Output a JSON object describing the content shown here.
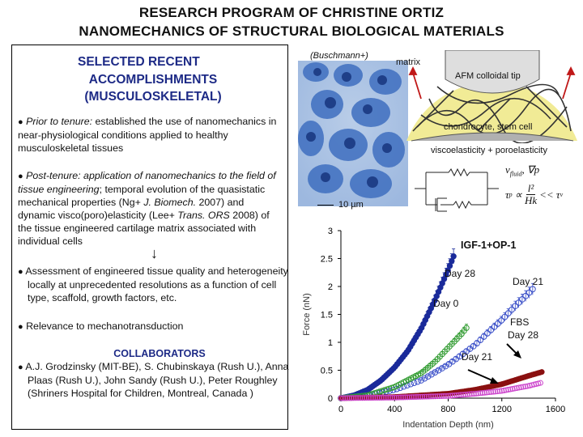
{
  "title": {
    "line1": "RESEARCH PROGRAM OF CHRISTINE ORTIZ",
    "line2": "NANOMECHANICS OF STRUCTURAL BIOLOGICAL MATERIALS"
  },
  "left": {
    "heading1": "SELECTED RECENT",
    "heading2": "ACCOMPLISHMENTS",
    "heading3": "(MUSCULOSKELETAL)",
    "bullet": "●",
    "p1_em": "Prior to tenure:",
    "p1_rest": " established the use of nanomechanics in near-physiological conditions applied to healthy musculoskeletal tissues",
    "p2_em1": "Post-tenure: application of nanomechanics to the field of tissue engineering",
    "p2_t1": "; temporal evolution of the quasistatic mechanical properties (Ng+ ",
    "p2_em2": "J. Biomech.",
    "p2_t2": " 2007) and dynamic visco(poro)elasticity (Lee+ ",
    "p2_em3": "Trans. ORS",
    "p2_t3": " 2008) of the tissue engineered cartilage matrix associated with individual cells",
    "down_arrow": "↓",
    "p3": "Assessment of engineered tissue quality and heterogeneity locally at unprecedented resolutions as a function of cell type, scaffold, growth factors, etc.",
    "p4": "Relevance to mechanotransduction",
    "collab_heading": "COLLABORATORS",
    "collab": "A.J. Grodzinsky (MIT-BE), S. Chubinskaya (Rush U.), Anna Plaas (Rush U.), John Sandy (Rush U.), Peter Roughley (Shriners Hospital for Children, Montreal, Canada )"
  },
  "micrograph": {
    "caption": "(Buschmann+)",
    "scalebar": "10 µm"
  },
  "schematic": {
    "matrix": "matrix",
    "tip": "AFM colloidal tip",
    "cell": "chondrocyte, stem cell",
    "model": "viscoelasticity + poroelasticity",
    "eq1": "v",
    "eq1_sub": "fluid",
    "eq1_rest": ", ∇p",
    "eq2_lhs": "τ",
    "eq2_sub": "p",
    "eq2_mid": "∝",
    "eq2_num": "l²",
    "eq2_den": "Hk",
    "eq2_rhs": "<< τ",
    "eq2_rhs_sub": "v"
  },
  "chart_data": {
    "type": "scatter",
    "xlabel": "Indentation Depth (nm)",
    "ylabel": "Force (nN)",
    "xlim": [
      0,
      1600
    ],
    "ylim": [
      0,
      3
    ],
    "xticks": [
      "0",
      "400",
      "800",
      "1200",
      "1600"
    ],
    "yticks": [
      "0",
      "0.5",
      "1",
      "1.5",
      "2",
      "2.5",
      "3"
    ],
    "legend": "IGF-1+OP-1",
    "labels": [
      "Day 28",
      "Day 21",
      "Day 0",
      "FBS",
      "Day 28",
      "Day 21"
    ],
    "colors": {
      "igf_day28": "#1a2a9a",
      "igf_day21": "#3a4fc8",
      "igf_day0": "#2e9a2e",
      "fbs_day28": "#8a1010",
      "fbs_day21": "#cc44cc"
    },
    "series": [
      {
        "name": "Day 28",
        "x": [
          0,
          100,
          200,
          300,
          400,
          500,
          600,
          700,
          800,
          850
        ],
        "y": [
          0,
          0.05,
          0.15,
          0.32,
          0.55,
          0.85,
          1.25,
          1.75,
          2.3,
          2.6
        ]
      },
      {
        "name": "Day 21",
        "x": [
          0,
          200,
          400,
          600,
          800,
          1000,
          1100,
          1200,
          1300,
          1400,
          1450
        ],
        "y": [
          0,
          0.05,
          0.15,
          0.32,
          0.6,
          0.95,
          1.18,
          1.4,
          1.65,
          1.88,
          2.0
        ]
      },
      {
        "name": "Day 0",
        "x": [
          0,
          200,
          400,
          600,
          700,
          800,
          900,
          950
        ],
        "y": [
          0,
          0.05,
          0.2,
          0.45,
          0.65,
          0.9,
          1.15,
          1.3
        ]
      },
      {
        "name": "Day 28",
        "x": [
          0,
          400,
          800,
          1000,
          1200,
          1400,
          1500
        ],
        "y": [
          0,
          0.02,
          0.08,
          0.15,
          0.25,
          0.4,
          0.47
        ]
      },
      {
        "name": "Day 21",
        "x": [
          0,
          400,
          800,
          1000,
          1200,
          1400,
          1500
        ],
        "y": [
          0,
          0.01,
          0.04,
          0.08,
          0.13,
          0.22,
          0.28
        ]
      }
    ]
  }
}
